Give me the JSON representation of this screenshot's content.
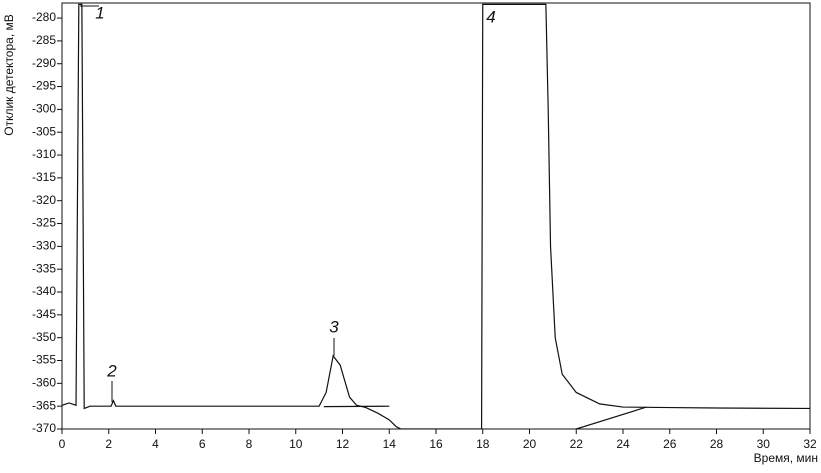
{
  "chart_data": {
    "type": "line",
    "y_label": "Отклик детектора, мВ",
    "x_label": "Время, мин",
    "xlim": [
      0,
      32
    ],
    "ylim": [
      -370,
      -276.7
    ],
    "xticks": [
      0,
      2,
      4,
      6,
      8,
      10,
      12,
      14,
      16,
      18,
      20,
      22,
      24,
      26,
      28,
      30,
      32
    ],
    "yticks": [
      -370,
      -365,
      -360,
      -355,
      -350,
      -345,
      -340,
      -335,
      -330,
      -325,
      -320,
      -315,
      -310,
      -305,
      -300,
      -295,
      -290,
      -285,
      -280
    ],
    "color": "#111111",
    "series": [
      {
        "x": [
          0,
          0.3,
          0.6,
          0.72,
          0.85,
          0.95,
          1.2,
          2.1,
          2.2,
          2.3,
          11.0,
          11.3,
          11.6,
          11.9,
          12.3,
          12.6,
          13.0,
          13.5,
          14.0,
          14.3,
          14.5,
          17.95,
          18.0,
          20.7,
          20.8,
          20.9,
          21.1,
          21.4,
          22.0,
          23.0,
          24.0,
          26.0,
          28.0,
          32.0
        ],
        "values": [
          -364.8,
          -364.3,
          -364.8,
          -277,
          -277,
          -365.5,
          -365.0,
          -365.0,
          -363.8,
          -365.0,
          -365.0,
          -362,
          -354,
          -356,
          -363,
          -364.8,
          -365.3,
          -366.5,
          -368,
          -369.5,
          -370,
          -370,
          -277,
          -277,
          -300,
          -330,
          -350,
          -358,
          -362,
          -364.5,
          -365.2,
          -365.3,
          -365.4,
          -365.5
        ]
      },
      {
        "x": [
          11.2,
          14.0
        ],
        "values": [
          -365.1,
          -365.0
        ]
      },
      {
        "x": [
          22.0,
          25.0
        ],
        "values": [
          -370,
          -365.2
        ]
      }
    ],
    "annotations": [
      "1",
      "2",
      "3",
      "4"
    ]
  }
}
